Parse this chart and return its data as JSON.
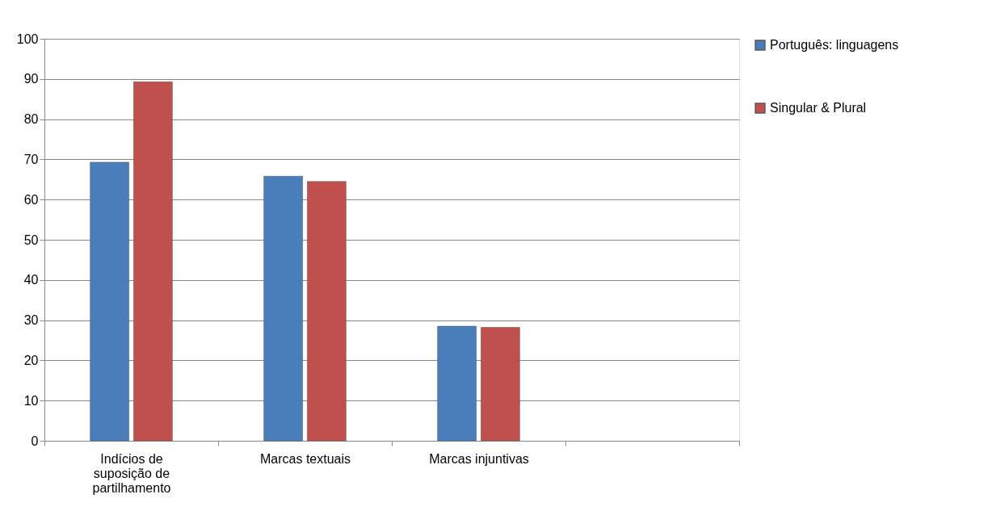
{
  "chart_data": {
    "type": "bar",
    "categories": [
      "Indícios de suposição de partilhamento",
      "Marcas textuais",
      "Marcas injuntivas",
      null
    ],
    "series": [
      {
        "name": "Português: linguagens",
        "color": "#4a7ebb",
        "values": [
          69.3,
          65.8,
          28.5,
          null
        ]
      },
      {
        "name": "Singular & Plural",
        "color": "#c0504d",
        "values": [
          89.3,
          64.5,
          28.2,
          null
        ]
      }
    ],
    "ylim": [
      0,
      100
    ],
    "yticks": [
      0,
      10,
      20,
      30,
      40,
      50,
      60,
      70,
      80,
      90,
      100
    ],
    "grid": "y",
    "legend": "right"
  }
}
